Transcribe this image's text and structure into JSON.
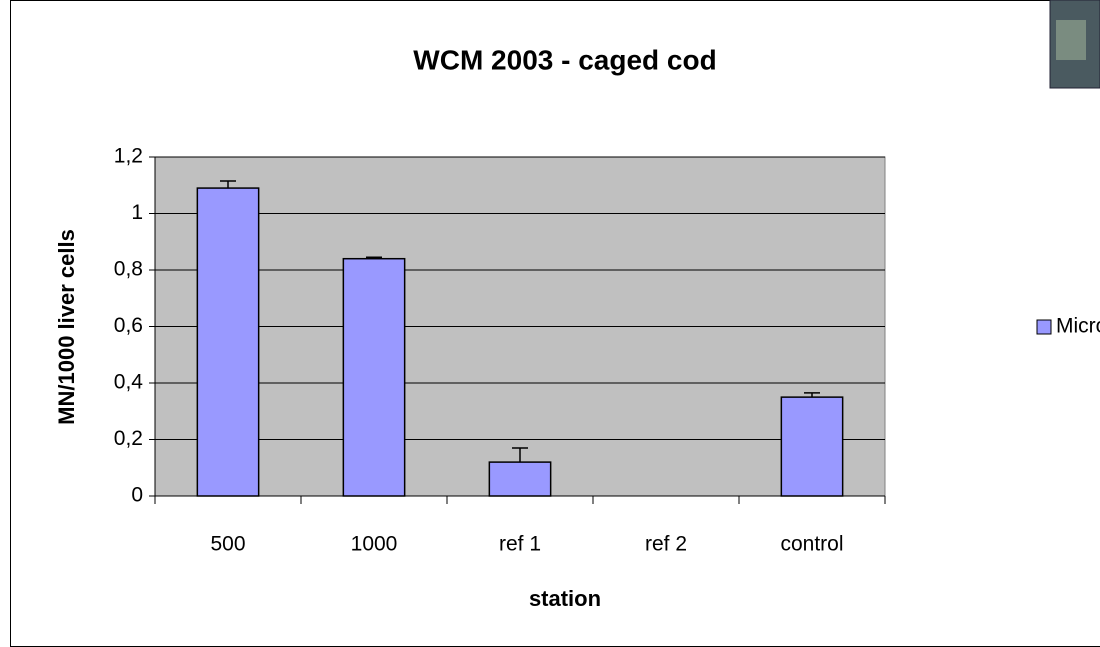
{
  "chart_data": {
    "type": "bar",
    "title": "WCM 2003 - caged cod",
    "x_label": "station",
    "y_label": "MN/1000 liver cells",
    "categories": [
      "500",
      "1000",
      "ref 1",
      "ref 2",
      "control"
    ],
    "series": [
      {
        "name": "Micronuclei",
        "color": "#9999ff",
        "values": [
          1.09,
          0.84,
          0.12,
          0,
          0.35
        ],
        "errors": [
          0.025,
          0.005,
          0.05,
          0,
          0.015
        ]
      }
    ],
    "ylim": [
      0,
      1.2
    ],
    "yticks": [
      0,
      {
        "value": 0.2,
        "label": "0,2"
      },
      {
        "value": 0.4,
        "label": "0,4"
      },
      {
        "value": 0.6,
        "label": "0,6"
      },
      {
        "value": 0.8,
        "label": "0,8"
      },
      1,
      {
        "value": 1.2,
        "label": "1,2"
      }
    ],
    "grid": true,
    "legend": "right"
  }
}
